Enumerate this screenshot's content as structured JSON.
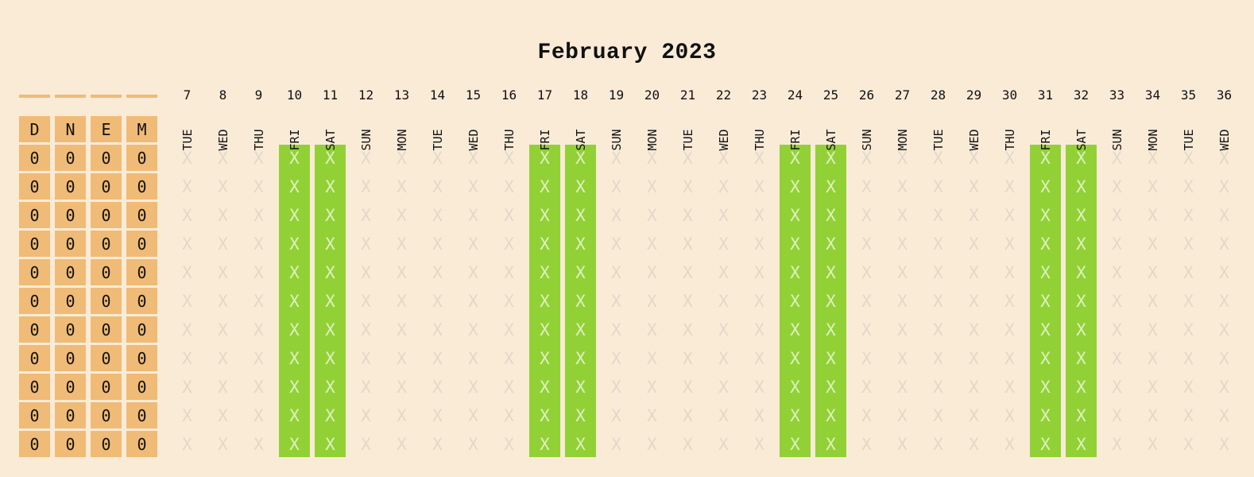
{
  "title": "February 2023",
  "stat_headers": [
    "D",
    "N",
    "E",
    "M"
  ],
  "stat_rows": [
    [
      "0",
      "0",
      "0",
      "0"
    ],
    [
      "0",
      "0",
      "0",
      "0"
    ],
    [
      "0",
      "0",
      "0",
      "0"
    ],
    [
      "0",
      "0",
      "0",
      "0"
    ],
    [
      "0",
      "0",
      "0",
      "0"
    ],
    [
      "0",
      "0",
      "0",
      "0"
    ],
    [
      "0",
      "0",
      "0",
      "0"
    ],
    [
      "0",
      "0",
      "0",
      "0"
    ],
    [
      "0",
      "0",
      "0",
      "0"
    ],
    [
      "0",
      "0",
      "0",
      "0"
    ],
    [
      "0",
      "0",
      "0",
      "0"
    ]
  ],
  "days": [
    {
      "num": "7",
      "name": "TUE",
      "weekend": false
    },
    {
      "num": "8",
      "name": "WED",
      "weekend": false
    },
    {
      "num": "9",
      "name": "THU",
      "weekend": false
    },
    {
      "num": "10",
      "name": "FRI",
      "weekend": true
    },
    {
      "num": "11",
      "name": "SAT",
      "weekend": true
    },
    {
      "num": "12",
      "name": "SUN",
      "weekend": false
    },
    {
      "num": "13",
      "name": "MON",
      "weekend": false
    },
    {
      "num": "14",
      "name": "TUE",
      "weekend": false
    },
    {
      "num": "15",
      "name": "WED",
      "weekend": false
    },
    {
      "num": "16",
      "name": "THU",
      "weekend": false
    },
    {
      "num": "17",
      "name": "FRI",
      "weekend": true
    },
    {
      "num": "18",
      "name": "SAT",
      "weekend": true
    },
    {
      "num": "19",
      "name": "SUN",
      "weekend": false
    },
    {
      "num": "20",
      "name": "MON",
      "weekend": false
    },
    {
      "num": "21",
      "name": "TUE",
      "weekend": false
    },
    {
      "num": "22",
      "name": "WED",
      "weekend": false
    },
    {
      "num": "23",
      "name": "THU",
      "weekend": false
    },
    {
      "num": "24",
      "name": "FRI",
      "weekend": true
    },
    {
      "num": "25",
      "name": "SAT",
      "weekend": true
    },
    {
      "num": "26",
      "name": "SUN",
      "weekend": false
    },
    {
      "num": "27",
      "name": "MON",
      "weekend": false
    },
    {
      "num": "28",
      "name": "TUE",
      "weekend": false
    },
    {
      "num": "29",
      "name": "WED",
      "weekend": false
    },
    {
      "num": "30",
      "name": "THU",
      "weekend": false
    },
    {
      "num": "31",
      "name": "FRI",
      "weekend": true
    },
    {
      "num": "32",
      "name": "SAT",
      "weekend": true
    },
    {
      "num": "33",
      "name": "SUN",
      "weekend": false
    },
    {
      "num": "34",
      "name": "MON",
      "weekend": false
    },
    {
      "num": "35",
      "name": "TUE",
      "weekend": false
    },
    {
      "num": "36",
      "name": "WED",
      "weekend": false
    }
  ],
  "cell_mark": "X",
  "colors": {
    "background": "#faebd7",
    "stat_cell": "#efbb77",
    "weekend": "#92d136",
    "mark": "#e3d8c8",
    "mark_on_weekend": "#dff0c0"
  }
}
